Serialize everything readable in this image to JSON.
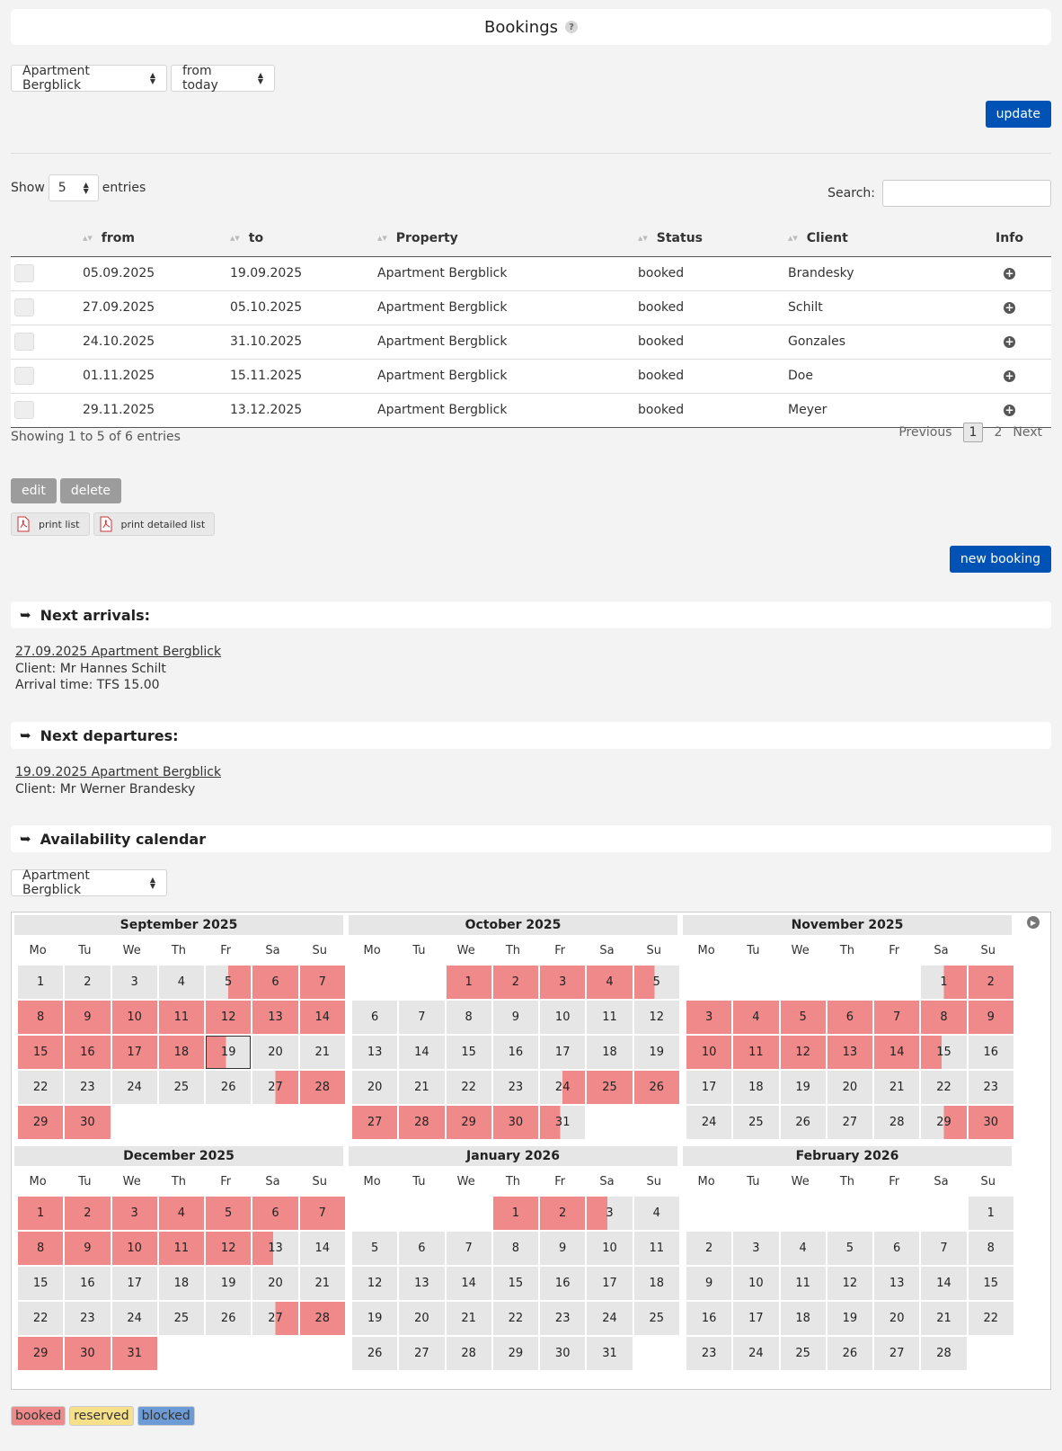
{
  "header": {
    "title": "Bookings",
    "help": "?"
  },
  "filters": {
    "property": "Apartment Bergblick",
    "range": "from today",
    "update_label": "update"
  },
  "table_controls": {
    "show_label": "Show",
    "page_size": "5",
    "entries_label": "entries",
    "search_label": "Search:",
    "search_value": ""
  },
  "table": {
    "columns": [
      "from",
      "to",
      "Property",
      "Status",
      "Client",
      "Info"
    ],
    "rows": [
      {
        "from": "05.09.2025",
        "to": "19.09.2025",
        "property": "Apartment Bergblick",
        "status": "booked",
        "client": "Brandesky"
      },
      {
        "from": "27.09.2025",
        "to": "05.10.2025",
        "property": "Apartment Bergblick",
        "status": "booked",
        "client": "Schilt"
      },
      {
        "from": "24.10.2025",
        "to": "31.10.2025",
        "property": "Apartment Bergblick",
        "status": "booked",
        "client": "Gonzales"
      },
      {
        "from": "01.11.2025",
        "to": "15.11.2025",
        "property": "Apartment Bergblick",
        "status": "booked",
        "client": "Doe"
      },
      {
        "from": "29.11.2025",
        "to": "13.12.2025",
        "property": "Apartment Bergblick",
        "status": "booked",
        "client": "Meyer"
      }
    ],
    "summary": "Showing 1 to 5 of 6 entries",
    "pagination": {
      "previous": "Previous",
      "pages": [
        "1",
        "2"
      ],
      "current": "1",
      "next": "Next"
    }
  },
  "actions": {
    "edit": "edit",
    "delete": "delete",
    "print_list": "print list",
    "print_detailed": "print detailed list",
    "new_booking": "new booking"
  },
  "arrivals": {
    "title": "Next arrivals:",
    "link": "27.09.2025 Apartment Bergblick",
    "client": "Client: Mr Hannes Schilt",
    "arrival_time": "Arrival time: TFS 15.00"
  },
  "departures": {
    "title": "Next departures:",
    "link": "19.09.2025 Apartment Bergblick",
    "client": "Client: Mr Werner Brandesky"
  },
  "calendar": {
    "title": "Availability calendar",
    "property": "Apartment Bergblick",
    "weekdays": [
      "Mo",
      "Tu",
      "We",
      "Th",
      "Fr",
      "Sa",
      "Su"
    ],
    "months": [
      {
        "name": "September 2025",
        "offset": 0,
        "days": 30,
        "start": [
          5,
          27
        ],
        "end": [
          19
        ],
        "booked": [
          6,
          7,
          8,
          9,
          10,
          11,
          12,
          13,
          14,
          15,
          16,
          17,
          18,
          28,
          29,
          30
        ],
        "today": 19
      },
      {
        "name": "October 2025",
        "offset": 2,
        "days": 31,
        "start": [
          24
        ],
        "end": [
          5,
          31
        ],
        "booked": [
          1,
          2,
          3,
          4,
          25,
          26,
          27,
          28,
          29,
          30
        ]
      },
      {
        "name": "November 2025",
        "offset": 5,
        "days": 30,
        "start": [
          1,
          29
        ],
        "end": [
          15
        ],
        "booked": [
          2,
          3,
          4,
          5,
          6,
          7,
          8,
          9,
          10,
          11,
          12,
          13,
          14,
          30
        ]
      },
      {
        "name": "December 2025",
        "offset": 0,
        "days": 31,
        "start": [
          27
        ],
        "end": [
          13
        ],
        "booked": [
          1,
          2,
          3,
          4,
          5,
          6,
          7,
          8,
          9,
          10,
          11,
          12,
          28,
          29,
          30,
          31
        ]
      },
      {
        "name": "January 2026",
        "offset": 3,
        "days": 31,
        "start": [],
        "end": [
          3
        ],
        "booked": [
          1,
          2
        ]
      },
      {
        "name": "February 2026",
        "offset": 6,
        "days": 28,
        "start": [],
        "end": [],
        "booked": []
      }
    ],
    "legend": [
      {
        "label": "booked",
        "color": "#f08a8a"
      },
      {
        "label": "reserved",
        "color": "#f7e08a"
      },
      {
        "label": "blocked",
        "color": "#6c9bd6"
      }
    ]
  },
  "colors": {
    "accent": "#0052b4",
    "booked": "#f08a8a",
    "free": "#e6e6e6"
  }
}
